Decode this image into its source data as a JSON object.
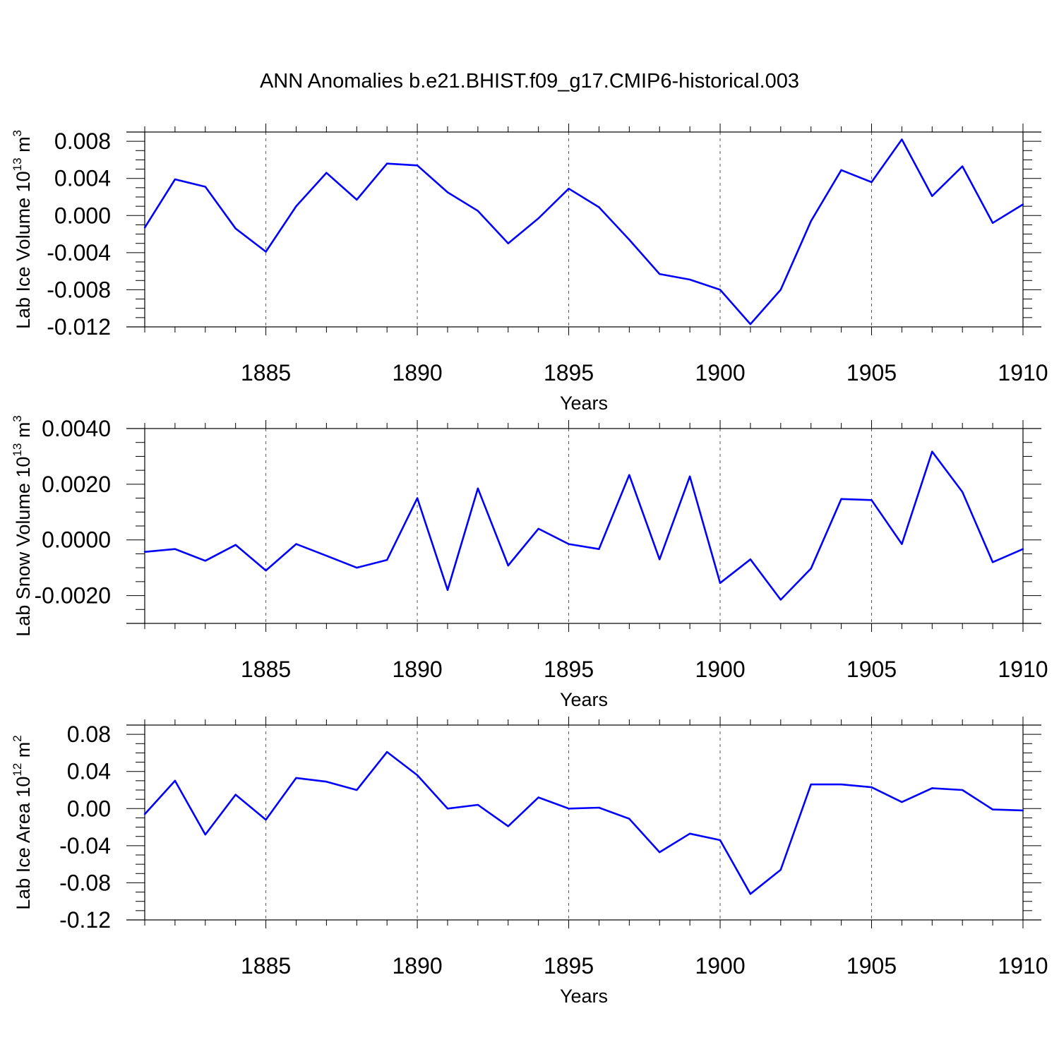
{
  "title": "ANN Anomalies b.e21.BHIST.f09_g17.CMIP6-historical.003",
  "line_color": "#0000ff",
  "chart_data": [
    {
      "type": "line",
      "ylabel": {
        "text": "Lab Ice Volume 10",
        "exp1": "13",
        "mid": " m",
        "exp2": "3"
      },
      "xlabel": "Years",
      "xlim": [
        1881,
        1910
      ],
      "ylim": [
        -0.012,
        0.009
      ],
      "yticks": [
        "0.008",
        "0.004",
        "0.000",
        "-0.004",
        "-0.008",
        "-0.012"
      ],
      "ytick_values": [
        0.008,
        0.004,
        0.0,
        -0.004,
        -0.008,
        -0.012
      ],
      "xticks": [
        "1885",
        "1890",
        "1895",
        "1900",
        "1905",
        "1910"
      ],
      "xtick_values": [
        1885,
        1890,
        1895,
        1900,
        1905,
        1910
      ],
      "x": [
        1881,
        1882,
        1883,
        1884,
        1885,
        1886,
        1887,
        1888,
        1889,
        1890,
        1891,
        1892,
        1893,
        1894,
        1895,
        1896,
        1897,
        1898,
        1899,
        1900,
        1901,
        1902,
        1903,
        1904,
        1905,
        1906,
        1907,
        1908,
        1909,
        1910
      ],
      "values": [
        -0.0013,
        0.0039,
        0.0031,
        -0.0014,
        -0.0039,
        0.001,
        0.0046,
        0.0017,
        0.0056,
        0.0054,
        0.0025,
        0.0005,
        -0.003,
        -0.0003,
        0.0029,
        0.0009,
        -0.0026,
        -0.0063,
        -0.0069,
        -0.008,
        -0.0117,
        -0.008,
        -0.0006,
        0.0049,
        0.0036,
        0.0082,
        0.0021,
        0.0053,
        -0.0008,
        0.0012
      ]
    },
    {
      "type": "line",
      "ylabel": {
        "text": "Lab Snow Volume 10",
        "exp1": "13",
        "mid": " m",
        "exp2": "3"
      },
      "xlabel": "Years",
      "xlim": [
        1881,
        1910
      ],
      "ylim": [
        -0.003,
        0.004
      ],
      "yticks": [
        "0.0040",
        "0.0020",
        "0.0000",
        "-0.0020"
      ],
      "ytick_values": [
        0.004,
        0.002,
        0.0,
        -0.002
      ],
      "xticks": [
        "1885",
        "1890",
        "1895",
        "1900",
        "1905",
        "1910"
      ],
      "xtick_values": [
        1885,
        1890,
        1895,
        1900,
        1905,
        1910
      ],
      "x": [
        1881,
        1882,
        1883,
        1884,
        1885,
        1886,
        1887,
        1888,
        1889,
        1890,
        1891,
        1892,
        1893,
        1894,
        1895,
        1896,
        1897,
        1898,
        1899,
        1900,
        1901,
        1902,
        1903,
        1904,
        1905,
        1906,
        1907,
        1908,
        1909,
        1910
      ],
      "values": [
        -0.00043,
        -0.00033,
        -0.00075,
        -0.00018,
        -0.0011,
        -0.00015,
        -0.00057,
        -0.001,
        -0.00072,
        0.0015,
        -0.0018,
        0.00185,
        -0.00092,
        0.0004,
        -0.00015,
        -0.00033,
        0.00233,
        -0.0007,
        0.00228,
        -0.00155,
        -0.0007,
        -0.00215,
        -0.00103,
        0.00147,
        0.00143,
        -0.00015,
        0.00317,
        0.00172,
        -0.0008,
        -0.00033
      ]
    },
    {
      "type": "line",
      "ylabel": {
        "text": "Lab Ice Area 10",
        "exp1": "12",
        "mid": " m",
        "exp2": "2"
      },
      "xlabel": "Years",
      "xlim": [
        1881,
        1910
      ],
      "ylim": [
        -0.12,
        0.09
      ],
      "yticks": [
        "0.08",
        "0.04",
        "0.00",
        "-0.04",
        "-0.08",
        "-0.12"
      ],
      "ytick_values": [
        0.08,
        0.04,
        0.0,
        -0.04,
        -0.08,
        -0.12
      ],
      "xticks": [
        "1885",
        "1890",
        "1895",
        "1900",
        "1905",
        "1910"
      ],
      "xtick_values": [
        1885,
        1890,
        1895,
        1900,
        1905,
        1910
      ],
      "x": [
        1881,
        1882,
        1883,
        1884,
        1885,
        1886,
        1887,
        1888,
        1889,
        1890,
        1891,
        1892,
        1893,
        1894,
        1895,
        1896,
        1897,
        1898,
        1899,
        1900,
        1901,
        1902,
        1903,
        1904,
        1905,
        1906,
        1907,
        1908,
        1909,
        1910
      ],
      "values": [
        -0.006,
        0.03,
        -0.028,
        0.015,
        -0.012,
        0.033,
        0.029,
        0.02,
        0.061,
        0.036,
        0.0,
        0.004,
        -0.019,
        0.012,
        0.0,
        0.001,
        -0.011,
        -0.047,
        -0.027,
        -0.034,
        -0.092,
        -0.066,
        0.026,
        0.026,
        0.023,
        0.007,
        0.022,
        0.02,
        -0.001,
        -0.002
      ]
    }
  ]
}
